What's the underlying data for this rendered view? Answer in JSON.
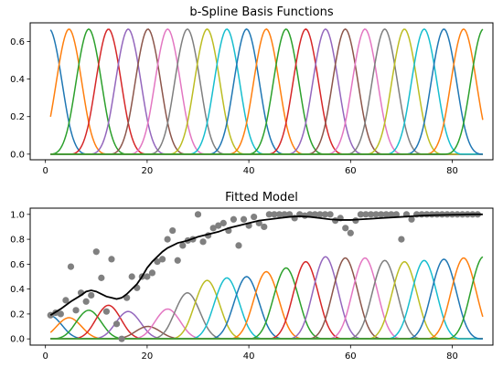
{
  "chart_data": [
    {
      "type": "line",
      "title": "b-Spline Basis Functions",
      "xlabel": "",
      "ylabel": "",
      "xlim": [
        -3,
        88
      ],
      "ylim": [
        -0.03,
        0.7
      ],
      "xticks": [
        0,
        20,
        40,
        60,
        80
      ],
      "yticks": [
        0.0,
        0.2,
        0.4,
        0.6
      ],
      "ytick_labels": [
        "0.0",
        "0.2",
        "0.4",
        "0.6"
      ],
      "grid": false,
      "legend": "none",
      "basis": {
        "kind": "cubic b-spline",
        "count": 23,
        "knot_start": -7,
        "knot_step": 3.88,
        "x_range": [
          1,
          86
        ],
        "peak_value": 0.6667
      },
      "palette": [
        "#1f77b4",
        "#ff7f0e",
        "#2ca02c",
        "#d62728",
        "#9467bd",
        "#8c564b",
        "#e377c2",
        "#7f7f7f",
        "#bcbd22",
        "#17becf"
      ]
    },
    {
      "type": "scatter",
      "title": "Fitted Model",
      "xlabel": "",
      "ylabel": "",
      "xlim": [
        -3,
        88
      ],
      "ylim": [
        -0.05,
        1.05
      ],
      "xticks": [
        0,
        20,
        40,
        60,
        80
      ],
      "yticks": [
        0.0,
        0.2,
        0.4,
        0.6,
        0.8,
        1.0
      ],
      "ytick_labels": [
        "0.0",
        "0.2",
        "0.4",
        "0.6",
        "0.8",
        "1.0"
      ],
      "grid": false,
      "legend": "none",
      "scatter_color": "#808080",
      "fit_color": "#000000",
      "points": [
        [
          1,
          0.19
        ],
        [
          2,
          0.21
        ],
        [
          3,
          0.2
        ],
        [
          4,
          0.31
        ],
        [
          5,
          0.58
        ],
        [
          6,
          0.23
        ],
        [
          7,
          0.37
        ],
        [
          8,
          0.3
        ],
        [
          9,
          0.35
        ],
        [
          10,
          0.7
        ],
        [
          11,
          0.49
        ],
        [
          12,
          0.22
        ],
        [
          13,
          0.64
        ],
        [
          14,
          0.12
        ],
        [
          15,
          0.0
        ],
        [
          16,
          0.33
        ],
        [
          17,
          0.5
        ],
        [
          18,
          0.41
        ],
        [
          19,
          0.5
        ],
        [
          20,
          0.5
        ],
        [
          21,
          0.53
        ],
        [
          22,
          0.62
        ],
        [
          23,
          0.64
        ],
        [
          24,
          0.8
        ],
        [
          25,
          0.87
        ],
        [
          26,
          0.63
        ],
        [
          27,
          0.75
        ],
        [
          28,
          0.79
        ],
        [
          29,
          0.8
        ],
        [
          30,
          1.0
        ],
        [
          31,
          0.78
        ],
        [
          32,
          0.83
        ],
        [
          33,
          0.89
        ],
        [
          34,
          0.91
        ],
        [
          35,
          0.93
        ],
        [
          36,
          0.87
        ],
        [
          37,
          0.96
        ],
        [
          38,
          0.75
        ],
        [
          39,
          0.96
        ],
        [
          40,
          0.91
        ],
        [
          41,
          0.98
        ],
        [
          42,
          0.93
        ],
        [
          43,
          0.9
        ],
        [
          44,
          1.0
        ],
        [
          45,
          1.0
        ],
        [
          46,
          1.0
        ],
        [
          47,
          1.0
        ],
        [
          48,
          1.0
        ],
        [
          49,
          0.97
        ],
        [
          50,
          1.0
        ],
        [
          51,
          0.99
        ],
        [
          52,
          1.0
        ],
        [
          53,
          1.0
        ],
        [
          54,
          1.0
        ],
        [
          55,
          1.0
        ],
        [
          56,
          1.0
        ],
        [
          57,
          0.95
        ],
        [
          58,
          0.97
        ],
        [
          59,
          0.89
        ],
        [
          60,
          0.85
        ],
        [
          61,
          0.95
        ],
        [
          62,
          1.0
        ],
        [
          63,
          1.0
        ],
        [
          64,
          1.0
        ],
        [
          65,
          1.0
        ],
        [
          66,
          1.0
        ],
        [
          67,
          1.0
        ],
        [
          68,
          1.0
        ],
        [
          69,
          1.0
        ],
        [
          70,
          0.8
        ],
        [
          71,
          1.0
        ],
        [
          72,
          0.96
        ],
        [
          73,
          1.0
        ],
        [
          74,
          1.0
        ],
        [
          75,
          1.0
        ],
        [
          76,
          1.0
        ],
        [
          77,
          1.0
        ],
        [
          78,
          1.0
        ],
        [
          79,
          1.0
        ],
        [
          80,
          1.0
        ],
        [
          81,
          1.0
        ],
        [
          82,
          1.0
        ],
        [
          83,
          1.0
        ],
        [
          84,
          1.0
        ],
        [
          85,
          1.0
        ]
      ],
      "fit_curve": [
        [
          1,
          0.19
        ],
        [
          3,
          0.24
        ],
        [
          5,
          0.3
        ],
        [
          7,
          0.35
        ],
        [
          8,
          0.38
        ],
        [
          9,
          0.39
        ],
        [
          10,
          0.38
        ],
        [
          11,
          0.36
        ],
        [
          12,
          0.34
        ],
        [
          13,
          0.33
        ],
        [
          14,
          0.32
        ],
        [
          15,
          0.33
        ],
        [
          16,
          0.36
        ],
        [
          17,
          0.4
        ],
        [
          18,
          0.44
        ],
        [
          19,
          0.5
        ],
        [
          20,
          0.57
        ],
        [
          21,
          0.62
        ],
        [
          22,
          0.66
        ],
        [
          23,
          0.7
        ],
        [
          24,
          0.73
        ],
        [
          26,
          0.77
        ],
        [
          28,
          0.79
        ],
        [
          30,
          0.82
        ],
        [
          32,
          0.84
        ],
        [
          34,
          0.86
        ],
        [
          36,
          0.89
        ],
        [
          38,
          0.91
        ],
        [
          40,
          0.93
        ],
        [
          42,
          0.95
        ],
        [
          44,
          0.96
        ],
        [
          46,
          0.97
        ],
        [
          48,
          0.98
        ],
        [
          50,
          0.985
        ],
        [
          52,
          0.98
        ],
        [
          54,
          0.97
        ],
        [
          56,
          0.96
        ],
        [
          58,
          0.955
        ],
        [
          60,
          0.955
        ],
        [
          62,
          0.96
        ],
        [
          64,
          0.965
        ],
        [
          66,
          0.97
        ],
        [
          68,
          0.975
        ],
        [
          70,
          0.98
        ],
        [
          72,
          0.985
        ],
        [
          74,
          0.99
        ],
        [
          76,
          0.993
        ],
        [
          78,
          0.995
        ],
        [
          80,
          0.997
        ],
        [
          82,
          0.998
        ],
        [
          84,
          1.0
        ],
        [
          86,
          1.0
        ]
      ],
      "basis": {
        "kind": "cubic b-spline (scaled by fitted coefficients)",
        "count": 23,
        "knot_start": -7,
        "knot_step": 3.88,
        "x_range": [
          1,
          86
        ],
        "peaks": [
          0.19,
          0.17,
          0.23,
          0.27,
          0.22,
          0.1,
          0.24,
          0.37,
          0.47,
          0.49,
          0.5,
          0.54,
          0.57,
          0.62,
          0.66,
          0.65,
          0.65,
          0.63,
          0.62,
          0.63,
          0.64,
          0.65,
          0.66
        ]
      },
      "palette": [
        "#1f77b4",
        "#ff7f0e",
        "#2ca02c",
        "#d62728",
        "#9467bd",
        "#8c564b",
        "#e377c2",
        "#7f7f7f",
        "#bcbd22",
        "#17becf"
      ]
    }
  ]
}
